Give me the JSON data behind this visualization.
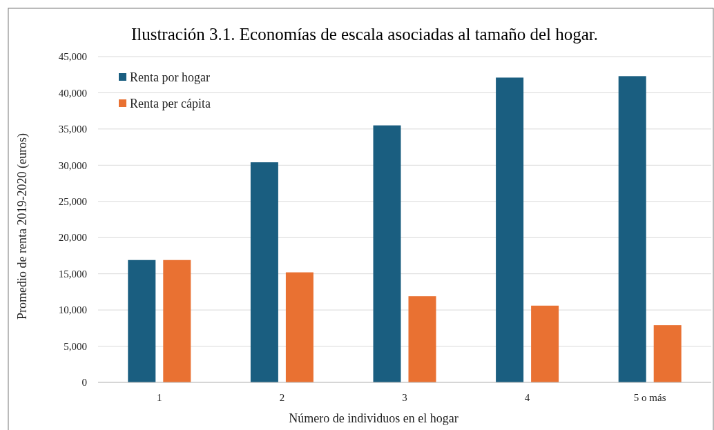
{
  "chart_data": {
    "type": "bar",
    "title": "Ilustración 3.1. Economías de escala asociadas al tamaño del hogar.",
    "xlabel": "Número de individuos en el hogar",
    "ylabel": "Promedio de renta 2019-2020 (euros)",
    "categories": [
      "1",
      "2",
      "3",
      "4",
      "5 o más"
    ],
    "series": [
      {
        "name": "Renta por hogar",
        "color": "#1a5e80",
        "values": [
          16900,
          30400,
          35500,
          42100,
          42300
        ]
      },
      {
        "name": "Renta per cápita",
        "color": "#e97132",
        "values": [
          16900,
          15200,
          11900,
          10600,
          7900
        ]
      }
    ],
    "ylim": [
      0,
      45000
    ],
    "yticks": [
      {
        "value": 0,
        "label": "0"
      },
      {
        "value": 5000,
        "label": "5,000"
      },
      {
        "value": 10000,
        "label": "10,000"
      },
      {
        "value": 15000,
        "label": "15,000"
      },
      {
        "value": 20000,
        "label": "20,000"
      },
      {
        "value": 25000,
        "label": "25,000"
      },
      {
        "value": 30000,
        "label": "30,000"
      },
      {
        "value": 35000,
        "label": "35,000"
      },
      {
        "value": 40000,
        "label": "40,000"
      },
      {
        "value": 45000,
        "label": "45,000"
      }
    ],
    "grid": "y",
    "legend": "top left"
  }
}
